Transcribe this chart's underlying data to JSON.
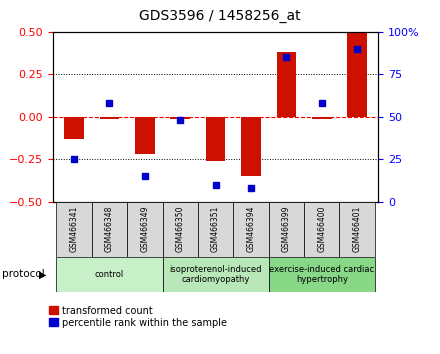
{
  "title": "GDS3596 / 1458256_at",
  "samples": [
    "GSM466341",
    "GSM466348",
    "GSM466349",
    "GSM466350",
    "GSM466351",
    "GSM466394",
    "GSM466399",
    "GSM466400",
    "GSM466401"
  ],
  "transformed_count": [
    -0.13,
    -0.01,
    -0.22,
    -0.01,
    -0.26,
    -0.35,
    0.38,
    -0.01,
    0.5
  ],
  "percentile_rank": [
    25,
    58,
    15,
    48,
    10,
    8,
    85,
    58,
    90
  ],
  "group_labels": [
    "control",
    "isoproterenol-induced\ncardiomyopathy",
    "exercise-induced cardiac\nhypertrophy"
  ],
  "group_colors": [
    "#c8f0c8",
    "#b8e8b8",
    "#88d888"
  ],
  "group_starts": [
    0,
    3,
    6
  ],
  "group_ends": [
    3,
    6,
    9
  ],
  "bar_color": "#cc1100",
  "dot_color": "#0000cc",
  "ylim_left": [
    -0.5,
    0.5
  ],
  "ylim_right": [
    0,
    100
  ],
  "yticks_left": [
    -0.5,
    -0.25,
    0,
    0.25,
    0.5
  ],
  "yticks_right": [
    0,
    25,
    50,
    75,
    100
  ],
  "background_color": "#ffffff",
  "protocol_label": "protocol"
}
